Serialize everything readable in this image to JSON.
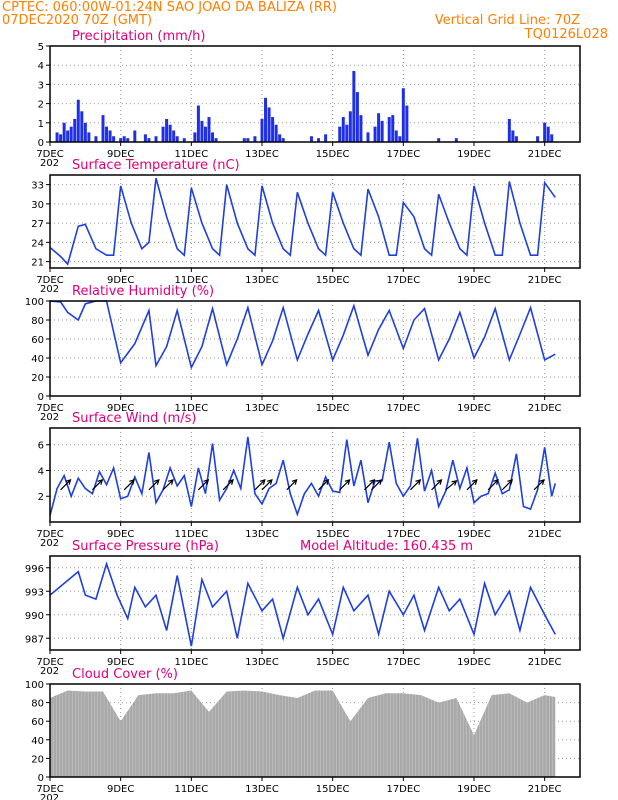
{
  "header": {
    "line1": "CPTEC:   060:00W-01:24N   SAO JOAO DA BALIZA (RR)",
    "line2_left": "07DEC2020 70Z (GMT)",
    "line2_right": "Vertical Grid Line: 70Z",
    "line3_right": "TQ0126L028"
  },
  "colors": {
    "header": "#ff7f00",
    "panel_title": "#e0007a",
    "line": "#1f3fe0",
    "bars": "#1f2fe8",
    "cloud": "#a9a9a9",
    "wind_arrow": "#000000"
  },
  "x_axis": {
    "start": "2020-12-07",
    "end": "2020-12-22",
    "tick_labels": [
      "7DEC",
      "9DEC",
      "11DEC",
      "13DEC",
      "15DEC",
      "17DEC",
      "19DEC",
      "21DEC"
    ],
    "tick_days": [
      0,
      2,
      4,
      6,
      8,
      10,
      12,
      14
    ],
    "start_year_label": "202"
  },
  "chart_data": [
    {
      "id": "precipitation",
      "type": "bar",
      "title": "Precipitation (mm/h)",
      "ylim": [
        0,
        5
      ],
      "yticks": [
        0,
        1,
        2,
        3,
        4,
        5
      ],
      "grid": true,
      "x_days": [
        0.2,
        0.3,
        0.4,
        0.5,
        0.6,
        0.7,
        0.8,
        0.9,
        1.0,
        1.1,
        1.3,
        1.5,
        1.6,
        1.7,
        1.8,
        2.0,
        2.1,
        2.2,
        2.4,
        2.7,
        2.8,
        3.0,
        3.2,
        3.3,
        3.4,
        3.5,
        3.6,
        3.8,
        4.1,
        4.2,
        4.3,
        4.4,
        4.5,
        4.6,
        4.7,
        5.5,
        5.6,
        5.8,
        6.0,
        6.1,
        6.2,
        6.3,
        6.4,
        6.5,
        6.6,
        7.4,
        7.6,
        7.8,
        8.2,
        8.3,
        8.4,
        8.5,
        8.6,
        8.7,
        8.8,
        9.0,
        9.2,
        9.3,
        9.4,
        9.6,
        9.7,
        9.8,
        9.9,
        10.0,
        10.1,
        11.0,
        11.5,
        13.0,
        13.1,
        13.2,
        13.8,
        14.0,
        14.1,
        14.2
      ],
      "values": [
        0.5,
        0.4,
        1.0,
        0.6,
        0.8,
        1.2,
        2.2,
        1.6,
        1.0,
        0.5,
        0.3,
        1.4,
        0.8,
        0.6,
        0.3,
        0.2,
        0.3,
        0.2,
        0.6,
        0.4,
        0.2,
        0.3,
        0.8,
        1.2,
        0.9,
        0.6,
        0.3,
        0.2,
        0.5,
        1.9,
        1.1,
        0.8,
        1.3,
        0.5,
        0.2,
        0.2,
        0.2,
        0.3,
        1.2,
        2.3,
        1.8,
        1.3,
        0.9,
        0.4,
        0.2,
        0.3,
        0.2,
        0.4,
        0.8,
        1.3,
        0.9,
        1.6,
        3.7,
        2.6,
        1.4,
        0.5,
        0.8,
        1.5,
        1.1,
        1.3,
        1.4,
        0.6,
        0.3,
        2.8,
        1.9,
        0.2,
        0.2,
        1.2,
        0.6,
        0.3,
        0.3,
        1.0,
        0.8,
        0.4
      ]
    },
    {
      "id": "surface_temperature",
      "type": "line",
      "title": "Surface Temperature (nC)",
      "ylim": [
        20,
        34.5
      ],
      "yticks": [
        21,
        24,
        27,
        30,
        33
      ],
      "grid": true,
      "x_days": [
        0,
        0.3,
        0.5,
        0.8,
        1.0,
        1.3,
        1.6,
        1.8,
        2.0,
        2.3,
        2.6,
        2.8,
        3.0,
        3.3,
        3.6,
        3.8,
        4.0,
        4.3,
        4.6,
        4.8,
        5.0,
        5.3,
        5.6,
        5.8,
        6.0,
        6.3,
        6.6,
        6.8,
        7.0,
        7.3,
        7.6,
        7.8,
        8.0,
        8.3,
        8.6,
        8.8,
        9.0,
        9.3,
        9.6,
        9.8,
        10.0,
        10.3,
        10.6,
        10.8,
        11.0,
        11.3,
        11.6,
        11.8,
        12.0,
        12.3,
        12.6,
        12.8,
        13.0,
        13.3,
        13.6,
        13.8,
        14.0,
        14.3
      ],
      "values": [
        23.2,
        21.8,
        20.6,
        26.5,
        26.8,
        23,
        22,
        22,
        32.8,
        27,
        23,
        24,
        34,
        28,
        23,
        22,
        32.5,
        27,
        23,
        22,
        33,
        27,
        23,
        22,
        32.8,
        27,
        23,
        22,
        31.8,
        27,
        23,
        22,
        31.8,
        27,
        23,
        22,
        32.3,
        28,
        22,
        22,
        30.2,
        28,
        23,
        22,
        31.5,
        27,
        23,
        22,
        32.8,
        27,
        22,
        22,
        33.5,
        27,
        22,
        22,
        33.3,
        31
      ]
    },
    {
      "id": "relative_humidity",
      "type": "line",
      "title": "Relative Humidity (%)",
      "ylim": [
        0,
        100
      ],
      "yticks": [
        0,
        20,
        40,
        60,
        80,
        100
      ],
      "grid": true,
      "x_days": [
        0,
        0.3,
        0.5,
        0.8,
        1.0,
        1.3,
        1.6,
        2.0,
        2.4,
        2.8,
        3.0,
        3.3,
        3.6,
        4.0,
        4.3,
        4.6,
        5.0,
        5.3,
        5.6,
        6.0,
        6.3,
        6.6,
        7.0,
        7.3,
        7.6,
        8.0,
        8.3,
        8.6,
        9.0,
        9.3,
        9.6,
        10.0,
        10.3,
        10.6,
        11.0,
        11.3,
        11.6,
        12.0,
        12.3,
        12.6,
        13.0,
        13.3,
        13.6,
        14.0,
        14.3
      ],
      "values": [
        100,
        99,
        88,
        80,
        97,
        100,
        100,
        35,
        55,
        90,
        32,
        52,
        90,
        30,
        52,
        92,
        33,
        60,
        93,
        33,
        58,
        93,
        38,
        65,
        90,
        38,
        64,
        95,
        43,
        70,
        90,
        50,
        80,
        92,
        38,
        60,
        88,
        40,
        62,
        92,
        38,
        65,
        93,
        38,
        44
      ]
    },
    {
      "id": "surface_wind",
      "type": "line",
      "title": "Surface Wind (m/s)",
      "ylim": [
        0,
        7.3
      ],
      "yticks": [
        2,
        4,
        6
      ],
      "grid": true,
      "x_days": [
        0,
        0.2,
        0.4,
        0.6,
        0.8,
        1.0,
        1.2,
        1.4,
        1.6,
        1.8,
        2.0,
        2.2,
        2.4,
        2.6,
        2.8,
        3.0,
        3.2,
        3.4,
        3.6,
        3.8,
        4.0,
        4.2,
        4.4,
        4.6,
        4.8,
        5.0,
        5.2,
        5.4,
        5.6,
        5.8,
        6.0,
        6.2,
        6.4,
        6.6,
        6.8,
        7.0,
        7.2,
        7.4,
        7.6,
        7.8,
        8.0,
        8.2,
        8.4,
        8.6,
        8.8,
        9.0,
        9.2,
        9.4,
        9.6,
        9.8,
        10.0,
        10.2,
        10.4,
        10.6,
        10.8,
        11.0,
        11.2,
        11.4,
        11.6,
        11.8,
        12.0,
        12.2,
        12.4,
        12.6,
        12.8,
        13.0,
        13.2,
        13.4,
        13.6,
        13.8,
        14.0,
        14.2,
        14.3
      ],
      "values": [
        0.5,
        2.6,
        3.6,
        2.0,
        3.4,
        2.6,
        2.2,
        3.9,
        2.9,
        4.2,
        1.8,
        2.0,
        3.5,
        2.2,
        5.4,
        1.5,
        2.5,
        4.2,
        2.8,
        3.6,
        1.2,
        4.2,
        2.2,
        6.1,
        1.7,
        2.6,
        4.0,
        2.6,
        6.6,
        2.2,
        1.4,
        2.6,
        3.0,
        4.8,
        2.2,
        0.6,
        2.2,
        3.0,
        2.0,
        3.5,
        2.4,
        2.3,
        6.4,
        2.8,
        4.8,
        1.5,
        3.2,
        3.2,
        6.2,
        3.0,
        2.0,
        2.8,
        6.5,
        2.4,
        4.0,
        1.2,
        2.4,
        4.8,
        2.6,
        4.2,
        1.5,
        2.0,
        2.2,
        3.8,
        2.2,
        2.5,
        5.3,
        1.2,
        1.0,
        2.5,
        5.8,
        2.0,
        3.0
      ],
      "arrows": [
        [
          0.3,
          135
        ],
        [
          1.2,
          45
        ],
        [
          2.1,
          135
        ],
        [
          2.8,
          45
        ],
        [
          3.2,
          135
        ],
        [
          4.2,
          135
        ],
        [
          4.9,
          135
        ],
        [
          5.8,
          45
        ],
        [
          6.0,
          135
        ],
        [
          6.7,
          135
        ],
        [
          7.6,
          45
        ],
        [
          8.2,
          135
        ],
        [
          8.9,
          45
        ],
        [
          9.1,
          135
        ],
        [
          10.2,
          135
        ],
        [
          10.8,
          135
        ],
        [
          11.2,
          140
        ],
        [
          11.8,
          135
        ],
        [
          12.4,
          135
        ],
        [
          12.8,
          135
        ],
        [
          13.7,
          135
        ]
      ]
    },
    {
      "id": "surface_pressure",
      "type": "line",
      "title": "Surface Pressure (hPa)",
      "title_extra": "Model Altitude: 160.435  m",
      "ylim": [
        985.5,
        997.5
      ],
      "yticks": [
        987,
        990,
        993,
        996
      ],
      "grid": true,
      "x_days": [
        0,
        0.4,
        0.8,
        1.0,
        1.3,
        1.6,
        1.9,
        2.2,
        2.4,
        2.7,
        3.0,
        3.3,
        3.6,
        4.0,
        4.3,
        4.6,
        5.0,
        5.3,
        5.6,
        6.0,
        6.3,
        6.6,
        7.0,
        7.3,
        7.6,
        8.0,
        8.3,
        8.6,
        9.0,
        9.3,
        9.6,
        10.0,
        10.3,
        10.6,
        11.0,
        11.3,
        11.6,
        12.0,
        12.3,
        12.6,
        13.0,
        13.3,
        13.6,
        14.0,
        14.3
      ],
      "values": [
        992.5,
        994.0,
        995.5,
        992.5,
        992.0,
        996.5,
        992.5,
        989.5,
        993.5,
        991.0,
        992.5,
        988.0,
        995.0,
        986.0,
        994.5,
        991.0,
        993.0,
        987.0,
        994.0,
        990.5,
        992.0,
        987.0,
        993.5,
        990.0,
        992.0,
        987.5,
        993.5,
        990.5,
        992.5,
        987.5,
        993.0,
        990.0,
        992.5,
        988.0,
        993.5,
        990.5,
        992.0,
        987.5,
        994.0,
        990.0,
        993.0,
        988.0,
        993.5,
        990.0,
        987.5
      ]
    },
    {
      "id": "cloud_cover",
      "type": "area",
      "title": "Cloud Cover (%)",
      "ylim": [
        0,
        100
      ],
      "yticks": [
        0,
        20,
        40,
        60,
        80,
        100
      ],
      "grid": true,
      "x_days": [
        0,
        0.5,
        1.0,
        1.5,
        2.0,
        2.5,
        3.0,
        3.5,
        4.0,
        4.5,
        5.0,
        5.5,
        6.0,
        6.5,
        7.0,
        7.5,
        8.0,
        8.5,
        9.0,
        9.5,
        10.0,
        10.5,
        11.0,
        11.5,
        12.0,
        12.5,
        13.0,
        13.5,
        14.0,
        14.3
      ],
      "values": [
        85,
        93,
        92,
        92,
        60,
        88,
        90,
        90,
        93,
        70,
        92,
        93,
        92,
        88,
        85,
        93,
        93,
        60,
        85,
        90,
        90,
        88,
        80,
        85,
        45,
        88,
        90,
        80,
        88,
        86
      ]
    }
  ]
}
